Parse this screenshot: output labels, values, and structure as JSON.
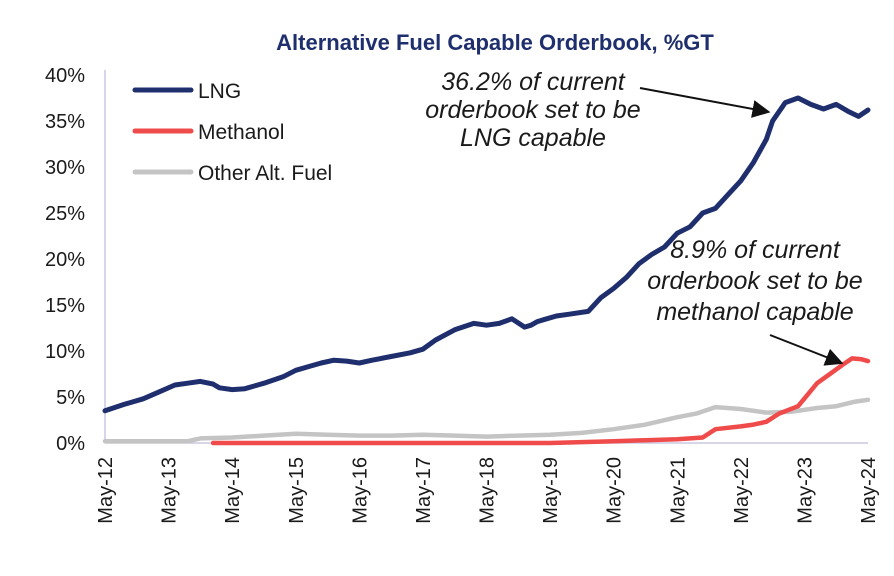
{
  "chart_data": {
    "type": "line",
    "title": "Alternative Fuel Capable Orderbook, %GT",
    "xlabel": "",
    "ylabel": "",
    "ylim": [
      0,
      40
    ],
    "y_ticks": [
      "0%",
      "5%",
      "10%",
      "15%",
      "20%",
      "25%",
      "30%",
      "35%",
      "40%"
    ],
    "x_ticks": [
      "May-12",
      "May-13",
      "May-14",
      "May-15",
      "May-16",
      "May-17",
      "May-18",
      "May-19",
      "May-20",
      "May-21",
      "May-22",
      "May-23",
      "May-24"
    ],
    "x_range_years": [
      0,
      12
    ],
    "legend_position": "top-left",
    "colors": {
      "lng": "#1f2f6e",
      "methanol": "#f04b4b",
      "other": "#c4c4c4",
      "axis": "#c8c8e0",
      "title": "#1f2f6e"
    },
    "series": [
      {
        "name": "LNG",
        "key": "lng",
        "x": [
          0,
          0.3,
          0.6,
          0.9,
          1.1,
          1.3,
          1.5,
          1.7,
          1.8,
          2.0,
          2.2,
          2.5,
          2.8,
          3.0,
          3.2,
          3.4,
          3.6,
          3.8,
          4.0,
          4.2,
          4.5,
          4.8,
          5.0,
          5.2,
          5.5,
          5.8,
          6.0,
          6.2,
          6.4,
          6.6,
          6.7,
          6.8,
          6.9,
          7.1,
          7.3,
          7.6,
          7.8,
          8.0,
          8.2,
          8.4,
          8.6,
          8.8,
          9.0,
          9.2,
          9.4,
          9.6,
          9.8,
          10.0,
          10.2,
          10.4,
          10.5,
          10.7,
          10.9,
          11.1,
          11.3,
          11.5,
          11.7,
          11.85,
          12.0
        ],
        "values": [
          3.5,
          4.2,
          4.8,
          5.7,
          6.3,
          6.5,
          6.7,
          6.4,
          6.0,
          5.8,
          5.9,
          6.5,
          7.2,
          7.9,
          8.3,
          8.7,
          9.0,
          8.9,
          8.7,
          9.0,
          9.4,
          9.8,
          10.2,
          11.2,
          12.3,
          13.0,
          12.8,
          13.0,
          13.5,
          12.6,
          12.8,
          13.2,
          13.4,
          13.8,
          14.0,
          14.3,
          15.8,
          16.8,
          18.0,
          19.5,
          20.5,
          21.3,
          22.8,
          23.5,
          25.0,
          25.5,
          27.0,
          28.5,
          30.5,
          33.0,
          35.0,
          37.0,
          37.5,
          36.8,
          36.3,
          36.8,
          36.0,
          35.5,
          36.2
        ]
      },
      {
        "name": "Methanol",
        "key": "methanol",
        "x": [
          1.7,
          2.5,
          3.5,
          4.5,
          5.5,
          6.5,
          7.0,
          7.5,
          8.0,
          8.5,
          9.0,
          9.4,
          9.6,
          10.0,
          10.2,
          10.4,
          10.6,
          10.9,
          11.2,
          11.4,
          11.6,
          11.75,
          11.9,
          12.0
        ],
        "values": [
          0.0,
          0.0,
          0.0,
          0.0,
          0.0,
          0.0,
          0.0,
          0.1,
          0.2,
          0.3,
          0.4,
          0.6,
          1.5,
          1.8,
          2.0,
          2.3,
          3.2,
          4.0,
          6.5,
          7.5,
          8.5,
          9.2,
          9.1,
          8.9
        ]
      },
      {
        "name": "Other Alt. Fuel",
        "key": "other",
        "x": [
          0,
          0.6,
          1.3,
          1.5,
          2.0,
          2.5,
          3.0,
          3.5,
          4.0,
          4.5,
          5.0,
          5.5,
          6.0,
          6.5,
          7.0,
          7.5,
          8.0,
          8.5,
          9.0,
          9.3,
          9.6,
          10.0,
          10.4,
          10.8,
          11.2,
          11.5,
          11.8,
          12.0
        ],
        "values": [
          0.2,
          0.2,
          0.2,
          0.5,
          0.6,
          0.8,
          1.0,
          0.9,
          0.8,
          0.8,
          0.9,
          0.8,
          0.7,
          0.8,
          0.9,
          1.1,
          1.5,
          2.0,
          2.8,
          3.2,
          3.9,
          3.7,
          3.3,
          3.4,
          3.8,
          4.0,
          4.5,
          4.7
        ]
      }
    ],
    "annotations": [
      {
        "key": "lng_annot",
        "lines": [
          "36.2% of current",
          "orderbook set to be",
          "LNG capable"
        ],
        "target_x": 10.5,
        "target_y": 36.2
      },
      {
        "key": "methanol_annot",
        "lines": [
          "8.9% of current",
          "orderbook set to be",
          "methanol capable"
        ],
        "target_x": 11.65,
        "target_y": 8.9
      }
    ]
  }
}
